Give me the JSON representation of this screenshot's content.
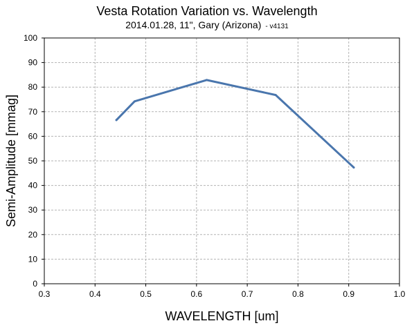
{
  "chart_data": {
    "type": "line",
    "title": "Vesta Rotation Variation vs. Wavelength",
    "subtitle": "2014.01.28, 11\", Gary (Arizona)",
    "version": "- v4131",
    "xlabel": "WAVELENGTH [um]",
    "ylabel": "Semi-Amplitude [mmag]",
    "xlim": [
      0.3,
      1.0
    ],
    "ylim": [
      0,
      100
    ],
    "xticks": [
      "0.3",
      "0.4",
      "0.5",
      "0.6",
      "0.7",
      "0.8",
      "0.9",
      "1.0"
    ],
    "yticks": [
      "0",
      "10",
      "20",
      "30",
      "40",
      "50",
      "60",
      "70",
      "80",
      "90",
      "100"
    ],
    "grid": true,
    "series": [
      {
        "color": "#4a76ad",
        "points": [
          {
            "x": 0.442,
            "y": 66.6
          },
          {
            "x": 0.478,
            "y": 74.2
          },
          {
            "x": 0.62,
            "y": 82.9
          },
          {
            "x": 0.756,
            "y": 76.8
          },
          {
            "x": 0.91,
            "y": 47.3
          }
        ]
      }
    ]
  }
}
